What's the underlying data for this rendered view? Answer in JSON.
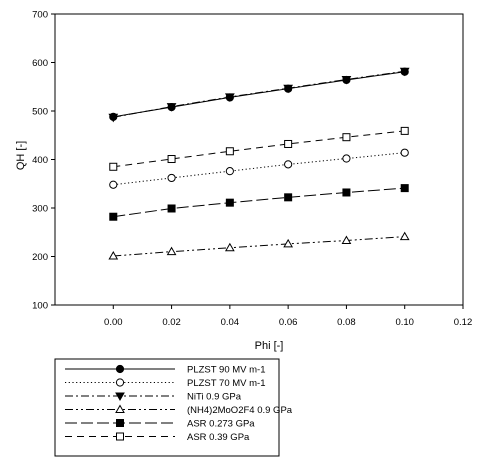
{
  "chart_data": {
    "type": "line",
    "xlabel": "Phi [-]",
    "ylabel": "QH [-]",
    "xlim": [
      -0.02,
      0.12
    ],
    "ylim": [
      100,
      700
    ],
    "x_ticks": [
      "0.00",
      "0.02",
      "0.04",
      "0.06",
      "0.08",
      "0.10",
      "0.12"
    ],
    "y_ticks": [
      "100",
      "200",
      "300",
      "400",
      "500",
      "600",
      "700"
    ],
    "x": [
      0.0,
      0.02,
      0.04,
      0.06,
      0.08,
      0.1
    ],
    "grid": false,
    "legend_position": "bottom",
    "series": [
      {
        "name": "PLZST 90 MV m-1",
        "values": [
          488,
          508,
          528,
          546,
          564,
          581
        ],
        "marker": "circle-filled",
        "dash": "solid"
      },
      {
        "name": "PLZST 70 MV m-1",
        "values": [
          348,
          362,
          376,
          390,
          402,
          414
        ],
        "marker": "circle-open",
        "dash": "dotted"
      },
      {
        "name": "NiTi 0.9 GPa",
        "values": [
          487,
          509,
          529,
          547,
          565,
          582
        ],
        "marker": "triangle-down-filled",
        "dash": "dashdot"
      },
      {
        "name": "(NH4)2MoO2F4 0.9 GPa",
        "values": [
          201,
          210,
          218,
          226,
          233,
          241
        ],
        "marker": "triangle-up-open",
        "dash": "dashdotdot"
      },
      {
        "name": "ASR 0.273 GPa",
        "values": [
          282,
          299,
          311,
          322,
          332,
          341
        ],
        "marker": "square-filled",
        "dash": "longdash"
      },
      {
        "name": "ASR 0.39 GPa",
        "values": [
          385,
          401,
          417,
          432,
          446,
          459
        ],
        "marker": "square-open",
        "dash": "dashed"
      }
    ]
  }
}
